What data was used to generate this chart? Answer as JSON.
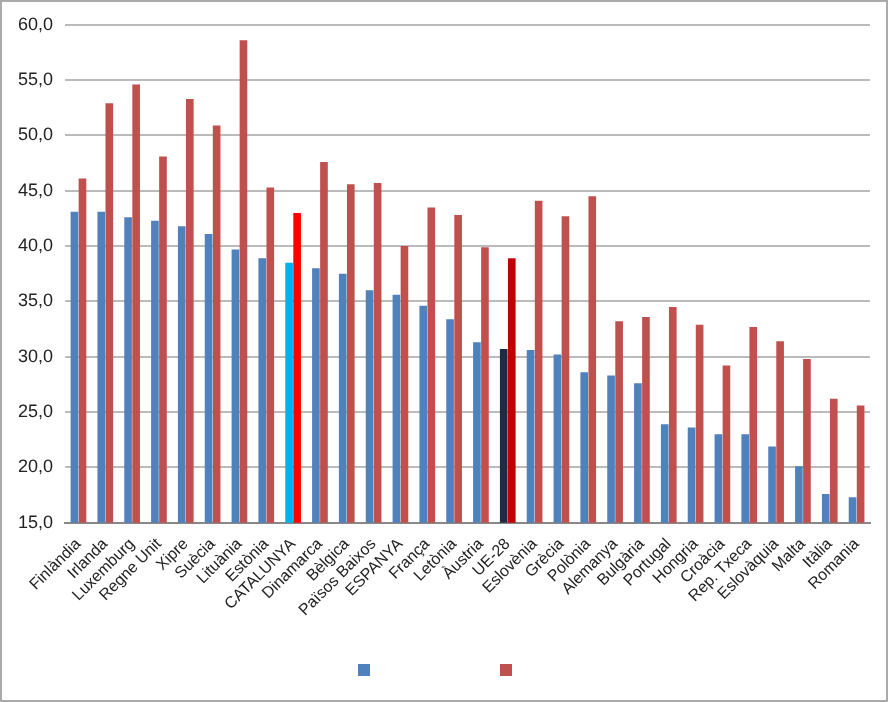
{
  "chart_data": {
    "type": "bar",
    "categories": [
      "Finlàndia",
      "Irlanda",
      "Luxemburg",
      "Regne Unit",
      "Xipre",
      "Suècia",
      "Lituània",
      "Estònia",
      "CATALUNYA",
      "Dinamarca",
      "Bèlgica",
      "Països Baixos",
      "ESPANYA",
      "França",
      "Letònia",
      "Àustria",
      "UE-28",
      "Eslovènia",
      "Grècia",
      "Polònia",
      "Alemanya",
      "Bulgària",
      "Portugal",
      "Hongria",
      "Croàcia",
      "Rep. Txeca",
      "Eslovàquia",
      "Malta",
      "Itàlia",
      "Romania"
    ],
    "series": [
      {
        "color": "#4f81bd",
        "colors": [
          "#4f81bd",
          "#4f81bd",
          "#4f81bd",
          "#4f81bd",
          "#4f81bd",
          "#4f81bd",
          "#4f81bd",
          "#4f81bd",
          "#00b0f0",
          "#4f81bd",
          "#4f81bd",
          "#4f81bd",
          "#4f81bd",
          "#4f81bd",
          "#4f81bd",
          "#4f81bd",
          "#1f2a44",
          "#4f81bd",
          "#4f81bd",
          "#4f81bd",
          "#4f81bd",
          "#4f81bd",
          "#4f81bd",
          "#4f81bd",
          "#4f81bd",
          "#4f81bd",
          "#4f81bd",
          "#4f81bd",
          "#4f81bd",
          "#4f81bd"
        ],
        "values": [
          43.1,
          43.1,
          42.6,
          42.3,
          41.8,
          41.1,
          39.7,
          38.9,
          38.5,
          38.0,
          37.5,
          36.0,
          35.6,
          34.6,
          33.4,
          31.3,
          30.7,
          30.6,
          30.2,
          28.6,
          28.3,
          27.6,
          23.9,
          23.6,
          23.0,
          23.0,
          21.9,
          20.1,
          17.6,
          17.3
        ]
      },
      {
        "color": "#c0504d",
        "colors": [
          "#c0504d",
          "#c0504d",
          "#c0504d",
          "#c0504d",
          "#c0504d",
          "#c0504d",
          "#c0504d",
          "#c0504d",
          "#ff0000",
          "#c0504d",
          "#c0504d",
          "#c0504d",
          "#c0504d",
          "#c0504d",
          "#c0504d",
          "#c0504d",
          "#c00000",
          "#c0504d",
          "#c0504d",
          "#c0504d",
          "#c0504d",
          "#c0504d",
          "#c0504d",
          "#c0504d",
          "#c0504d",
          "#c0504d",
          "#c0504d",
          "#c0504d",
          "#c0504d",
          "#c0504d"
        ],
        "values": [
          46.1,
          52.9,
          54.6,
          48.1,
          53.3,
          50.9,
          58.6,
          45.3,
          43.0,
          47.6,
          45.6,
          45.7,
          40.0,
          43.5,
          42.8,
          39.9,
          38.9,
          44.1,
          42.7,
          44.5,
          33.2,
          33.6,
          34.5,
          32.9,
          29.2,
          32.7,
          31.4,
          29.8,
          26.2,
          25.6
        ]
      }
    ],
    "ylim": [
      15,
      60
    ],
    "yticks": [
      {
        "value": 15,
        "label": "15,0"
      },
      {
        "value": 20,
        "label": "20,0"
      },
      {
        "value": 25,
        "label": "25,0"
      },
      {
        "value": 30,
        "label": "30,0"
      },
      {
        "value": 35,
        "label": "35,0"
      },
      {
        "value": 40,
        "label": "40,0"
      },
      {
        "value": 45,
        "label": "45,0"
      },
      {
        "value": 50,
        "label": "50,0"
      },
      {
        "value": 55,
        "label": "55,0"
      },
      {
        "value": 60,
        "label": "60,0"
      }
    ],
    "grid": "y"
  }
}
